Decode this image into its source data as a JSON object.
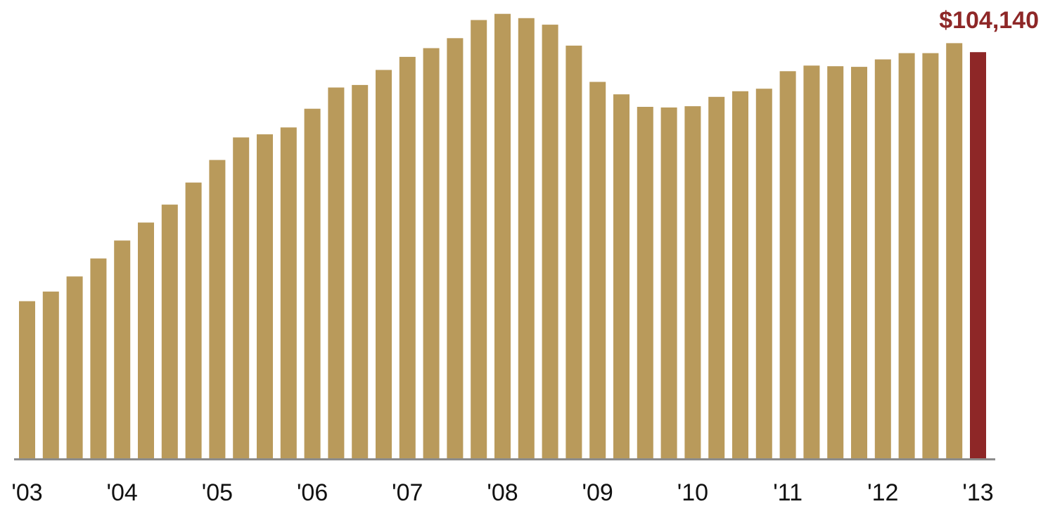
{
  "chart_data": {
    "type": "bar",
    "categories": [
      "2003 Q1",
      "2003 Q2",
      "2003 Q3",
      "2003 Q4",
      "2004 Q1",
      "2004 Q2",
      "2004 Q3",
      "2004 Q4",
      "2005 Q1",
      "2005 Q2",
      "2005 Q3",
      "2005 Q4",
      "2006 Q1",
      "2006 Q2",
      "2006 Q3",
      "2006 Q4",
      "2007 Q1",
      "2007 Q2",
      "2007 Q3",
      "2007 Q4",
      "2008 Q1",
      "2008 Q2",
      "2008 Q3",
      "2008 Q4",
      "2009 Q1",
      "2009 Q2",
      "2009 Q3",
      "2009 Q4",
      "2010 Q1",
      "2010 Q2",
      "2010 Q3",
      "2010 Q4",
      "2011 Q1",
      "2011 Q2",
      "2011 Q3",
      "2011 Q4",
      "2012 Q1",
      "2012 Q2",
      "2012 Q3",
      "2012 Q4",
      "2013 Q1"
    ],
    "values": [
      40290,
      42760,
      46630,
      51240,
      55840,
      60450,
      65050,
      70720,
      76500,
      82280,
      83080,
      84840,
      89640,
      95090,
      95740,
      99590,
      102940,
      105180,
      107740,
      112390,
      113980,
      112880,
      111190,
      105830,
      96530,
      93330,
      90120,
      89960,
      90280,
      92690,
      94130,
      94770,
      99260,
      100700,
      100540,
      100380,
      102300,
      103900,
      103900,
      106460,
      104140
    ],
    "ylim": [
      0,
      115000
    ],
    "x_tick_labels": [
      "'03",
      "'04",
      "'05",
      "'06",
      "'07",
      "'08",
      "'09",
      "'10",
      "'11",
      "'12",
      "'13"
    ],
    "x_tick_indices": [
      0,
      4,
      8,
      12,
      16,
      20,
      24,
      28,
      32,
      36,
      40
    ],
    "highlight_index": 40,
    "highlight_label": "$104,140",
    "title": "",
    "xlabel": "",
    "ylabel": "",
    "grid": false,
    "legend": "none",
    "colors": {
      "bar": "#B99A5B",
      "highlight": "#8E2727",
      "axis": "#8C8C8C",
      "tick_text": "#111111"
    }
  }
}
